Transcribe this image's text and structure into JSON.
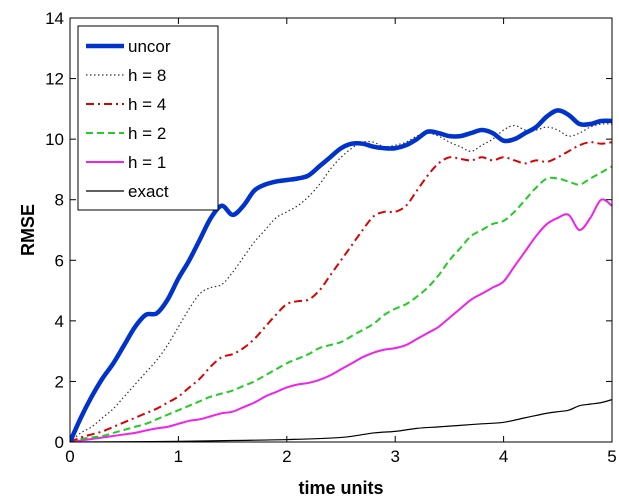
{
  "chart_data": {
    "type": "line",
    "title": "",
    "xlabel": "time units",
    "ylabel": "RMSE",
    "xlim": [
      0,
      5
    ],
    "ylim": [
      0,
      14
    ],
    "xticks": [
      0,
      1,
      2,
      3,
      4,
      5
    ],
    "yticks": [
      0,
      2,
      4,
      6,
      8,
      10,
      12,
      14
    ],
    "grid": false,
    "legend_position": "top-left",
    "series": [
      {
        "name": "uncor",
        "color": "#0033cc",
        "style": "solid-thick",
        "points": [
          [
            0,
            0
          ],
          [
            0.1,
            0.8
          ],
          [
            0.2,
            1.5
          ],
          [
            0.3,
            2.1
          ],
          [
            0.4,
            2.6
          ],
          [
            0.5,
            3.2
          ],
          [
            0.6,
            3.8
          ],
          [
            0.7,
            4.2
          ],
          [
            0.8,
            4.25
          ],
          [
            0.9,
            4.7
          ],
          [
            1.0,
            5.4
          ],
          [
            1.1,
            6.0
          ],
          [
            1.2,
            6.7
          ],
          [
            1.3,
            7.4
          ],
          [
            1.4,
            7.8
          ],
          [
            1.5,
            7.5
          ],
          [
            1.6,
            7.8
          ],
          [
            1.7,
            8.3
          ],
          [
            1.8,
            8.5
          ],
          [
            1.9,
            8.6
          ],
          [
            2.0,
            8.65
          ],
          [
            2.1,
            8.7
          ],
          [
            2.2,
            8.8
          ],
          [
            2.3,
            9.1
          ],
          [
            2.4,
            9.4
          ],
          [
            2.5,
            9.7
          ],
          [
            2.6,
            9.85
          ],
          [
            2.7,
            9.85
          ],
          [
            2.8,
            9.75
          ],
          [
            2.9,
            9.7
          ],
          [
            3.0,
            9.7
          ],
          [
            3.1,
            9.8
          ],
          [
            3.2,
            10.0
          ],
          [
            3.3,
            10.25
          ],
          [
            3.4,
            10.2
          ],
          [
            3.5,
            10.1
          ],
          [
            3.6,
            10.1
          ],
          [
            3.7,
            10.2
          ],
          [
            3.8,
            10.3
          ],
          [
            3.9,
            10.2
          ],
          [
            4.0,
            9.95
          ],
          [
            4.1,
            10.0
          ],
          [
            4.2,
            10.2
          ],
          [
            4.3,
            10.4
          ],
          [
            4.4,
            10.75
          ],
          [
            4.5,
            10.95
          ],
          [
            4.6,
            10.8
          ],
          [
            4.7,
            10.5
          ],
          [
            4.8,
            10.5
          ],
          [
            4.9,
            10.6
          ],
          [
            5.0,
            10.6
          ]
        ]
      },
      {
        "name": "h = 8",
        "color": "#333333",
        "style": "dotted",
        "points": [
          [
            0,
            0
          ],
          [
            0.1,
            0.3
          ],
          [
            0.2,
            0.5
          ],
          [
            0.3,
            0.8
          ],
          [
            0.4,
            1.1
          ],
          [
            0.5,
            1.5
          ],
          [
            0.6,
            1.9
          ],
          [
            0.7,
            2.3
          ],
          [
            0.8,
            2.7
          ],
          [
            0.9,
            3.2
          ],
          [
            1.0,
            3.8
          ],
          [
            1.1,
            4.4
          ],
          [
            1.2,
            4.9
          ],
          [
            1.3,
            5.1
          ],
          [
            1.4,
            5.2
          ],
          [
            1.5,
            5.6
          ],
          [
            1.6,
            6.1
          ],
          [
            1.7,
            6.6
          ],
          [
            1.8,
            7.0
          ],
          [
            1.9,
            7.4
          ],
          [
            2.0,
            7.6
          ],
          [
            2.1,
            7.8
          ],
          [
            2.2,
            8.1
          ],
          [
            2.3,
            8.5
          ],
          [
            2.4,
            9.0
          ],
          [
            2.5,
            9.4
          ],
          [
            2.6,
            9.7
          ],
          [
            2.7,
            9.9
          ],
          [
            2.8,
            9.9
          ],
          [
            2.9,
            9.75
          ],
          [
            3.0,
            9.8
          ],
          [
            3.1,
            9.9
          ],
          [
            3.2,
            10.1
          ],
          [
            3.3,
            10.2
          ],
          [
            3.4,
            10.1
          ],
          [
            3.5,
            9.9
          ],
          [
            3.6,
            9.75
          ],
          [
            3.7,
            9.6
          ],
          [
            3.8,
            9.8
          ],
          [
            3.9,
            10.0
          ],
          [
            4.0,
            10.3
          ],
          [
            4.1,
            10.45
          ],
          [
            4.2,
            10.3
          ],
          [
            4.3,
            10.3
          ],
          [
            4.4,
            10.4
          ],
          [
            4.5,
            10.3
          ],
          [
            4.6,
            10.1
          ],
          [
            4.7,
            10.2
          ],
          [
            4.8,
            10.4
          ],
          [
            4.9,
            10.5
          ],
          [
            5.0,
            10.5
          ]
        ]
      },
      {
        "name": "h = 4",
        "color": "#dd0000",
        "style": "dashdot",
        "points": [
          [
            0,
            0
          ],
          [
            0.1,
            0.15
          ],
          [
            0.2,
            0.25
          ],
          [
            0.3,
            0.35
          ],
          [
            0.4,
            0.5
          ],
          [
            0.5,
            0.65
          ],
          [
            0.6,
            0.8
          ],
          [
            0.7,
            0.95
          ],
          [
            0.8,
            1.1
          ],
          [
            0.9,
            1.3
          ],
          [
            1.0,
            1.5
          ],
          [
            1.1,
            1.8
          ],
          [
            1.2,
            2.1
          ],
          [
            1.3,
            2.5
          ],
          [
            1.4,
            2.8
          ],
          [
            1.5,
            2.9
          ],
          [
            1.6,
            3.1
          ],
          [
            1.7,
            3.4
          ],
          [
            1.8,
            3.8
          ],
          [
            1.9,
            4.2
          ],
          [
            2.0,
            4.55
          ],
          [
            2.1,
            4.65
          ],
          [
            2.2,
            4.7
          ],
          [
            2.3,
            5.0
          ],
          [
            2.4,
            5.5
          ],
          [
            2.5,
            6.0
          ],
          [
            2.6,
            6.5
          ],
          [
            2.7,
            7.0
          ],
          [
            2.8,
            7.45
          ],
          [
            2.9,
            7.6
          ],
          [
            3.0,
            7.6
          ],
          [
            3.1,
            7.8
          ],
          [
            3.2,
            8.3
          ],
          [
            3.3,
            8.8
          ],
          [
            3.4,
            9.2
          ],
          [
            3.5,
            9.4
          ],
          [
            3.6,
            9.35
          ],
          [
            3.7,
            9.3
          ],
          [
            3.8,
            9.4
          ],
          [
            3.9,
            9.3
          ],
          [
            4.0,
            9.4
          ],
          [
            4.1,
            9.3
          ],
          [
            4.2,
            9.2
          ],
          [
            4.3,
            9.3
          ],
          [
            4.4,
            9.25
          ],
          [
            4.5,
            9.4
          ],
          [
            4.6,
            9.6
          ],
          [
            4.7,
            9.8
          ],
          [
            4.8,
            9.9
          ],
          [
            4.9,
            9.85
          ],
          [
            5.0,
            9.9
          ]
        ]
      },
      {
        "name": "h = 2",
        "color": "#22cc22",
        "style": "dashed",
        "points": [
          [
            0,
            0
          ],
          [
            0.1,
            0.1
          ],
          [
            0.2,
            0.15
          ],
          [
            0.3,
            0.2
          ],
          [
            0.4,
            0.3
          ],
          [
            0.5,
            0.4
          ],
          [
            0.6,
            0.5
          ],
          [
            0.7,
            0.6
          ],
          [
            0.8,
            0.75
          ],
          [
            0.9,
            0.9
          ],
          [
            1.0,
            1.05
          ],
          [
            1.1,
            1.2
          ],
          [
            1.2,
            1.35
          ],
          [
            1.3,
            1.5
          ],
          [
            1.4,
            1.6
          ],
          [
            1.5,
            1.7
          ],
          [
            1.6,
            1.85
          ],
          [
            1.7,
            2.0
          ],
          [
            1.8,
            2.2
          ],
          [
            1.9,
            2.4
          ],
          [
            2.0,
            2.6
          ],
          [
            2.1,
            2.75
          ],
          [
            2.2,
            2.9
          ],
          [
            2.3,
            3.1
          ],
          [
            2.4,
            3.2
          ],
          [
            2.5,
            3.3
          ],
          [
            2.6,
            3.5
          ],
          [
            2.7,
            3.7
          ],
          [
            2.8,
            3.9
          ],
          [
            2.9,
            4.2
          ],
          [
            3.0,
            4.4
          ],
          [
            3.1,
            4.55
          ],
          [
            3.2,
            4.8
          ],
          [
            3.3,
            5.1
          ],
          [
            3.4,
            5.5
          ],
          [
            3.5,
            6.0
          ],
          [
            3.6,
            6.4
          ],
          [
            3.7,
            6.8
          ],
          [
            3.8,
            7.0
          ],
          [
            3.9,
            7.2
          ],
          [
            4.0,
            7.3
          ],
          [
            4.1,
            7.6
          ],
          [
            4.2,
            8.0
          ],
          [
            4.3,
            8.4
          ],
          [
            4.4,
            8.7
          ],
          [
            4.5,
            8.7
          ],
          [
            4.6,
            8.6
          ],
          [
            4.7,
            8.5
          ],
          [
            4.8,
            8.7
          ],
          [
            4.9,
            8.9
          ],
          [
            5.0,
            9.1
          ]
        ]
      },
      {
        "name": "h = 1",
        "color": "#ee22ee",
        "style": "solid",
        "points": [
          [
            0,
            0
          ],
          [
            0.1,
            0.05
          ],
          [
            0.2,
            0.1
          ],
          [
            0.3,
            0.15
          ],
          [
            0.4,
            0.2
          ],
          [
            0.5,
            0.25
          ],
          [
            0.6,
            0.3
          ],
          [
            0.7,
            0.38
          ],
          [
            0.8,
            0.45
          ],
          [
            0.9,
            0.5
          ],
          [
            1.0,
            0.6
          ],
          [
            1.1,
            0.7
          ],
          [
            1.2,
            0.75
          ],
          [
            1.3,
            0.85
          ],
          [
            1.4,
            0.95
          ],
          [
            1.5,
            1.0
          ],
          [
            1.6,
            1.15
          ],
          [
            1.7,
            1.3
          ],
          [
            1.8,
            1.5
          ],
          [
            1.9,
            1.65
          ],
          [
            2.0,
            1.8
          ],
          [
            2.1,
            1.9
          ],
          [
            2.2,
            1.95
          ],
          [
            2.3,
            2.05
          ],
          [
            2.4,
            2.2
          ],
          [
            2.5,
            2.4
          ],
          [
            2.6,
            2.6
          ],
          [
            2.7,
            2.8
          ],
          [
            2.8,
            2.95
          ],
          [
            2.9,
            3.05
          ],
          [
            3.0,
            3.1
          ],
          [
            3.1,
            3.2
          ],
          [
            3.2,
            3.4
          ],
          [
            3.3,
            3.6
          ],
          [
            3.4,
            3.8
          ],
          [
            3.5,
            4.1
          ],
          [
            3.6,
            4.4
          ],
          [
            3.7,
            4.7
          ],
          [
            3.8,
            4.9
          ],
          [
            3.9,
            5.1
          ],
          [
            4.0,
            5.3
          ],
          [
            4.1,
            5.8
          ],
          [
            4.2,
            6.3
          ],
          [
            4.3,
            6.8
          ],
          [
            4.4,
            7.2
          ],
          [
            4.5,
            7.4
          ],
          [
            4.6,
            7.5
          ],
          [
            4.7,
            7.0
          ],
          [
            4.8,
            7.4
          ],
          [
            4.9,
            8.0
          ],
          [
            5.0,
            7.8
          ]
        ]
      },
      {
        "name": "exact",
        "color": "#000000",
        "style": "solid-thin",
        "points": [
          [
            0,
            0
          ],
          [
            0.5,
            0.01
          ],
          [
            1.0,
            0.02
          ],
          [
            1.5,
            0.05
          ],
          [
            2.0,
            0.08
          ],
          [
            2.5,
            0.15
          ],
          [
            2.8,
            0.3
          ],
          [
            3.0,
            0.35
          ],
          [
            3.2,
            0.45
          ],
          [
            3.4,
            0.5
          ],
          [
            3.6,
            0.55
          ],
          [
            3.8,
            0.6
          ],
          [
            4.0,
            0.65
          ],
          [
            4.2,
            0.8
          ],
          [
            4.4,
            0.95
          ],
          [
            4.5,
            1.0
          ],
          [
            4.6,
            1.05
          ],
          [
            4.7,
            1.2
          ],
          [
            4.8,
            1.25
          ],
          [
            4.9,
            1.3
          ],
          [
            5.0,
            1.4
          ]
        ]
      }
    ]
  }
}
